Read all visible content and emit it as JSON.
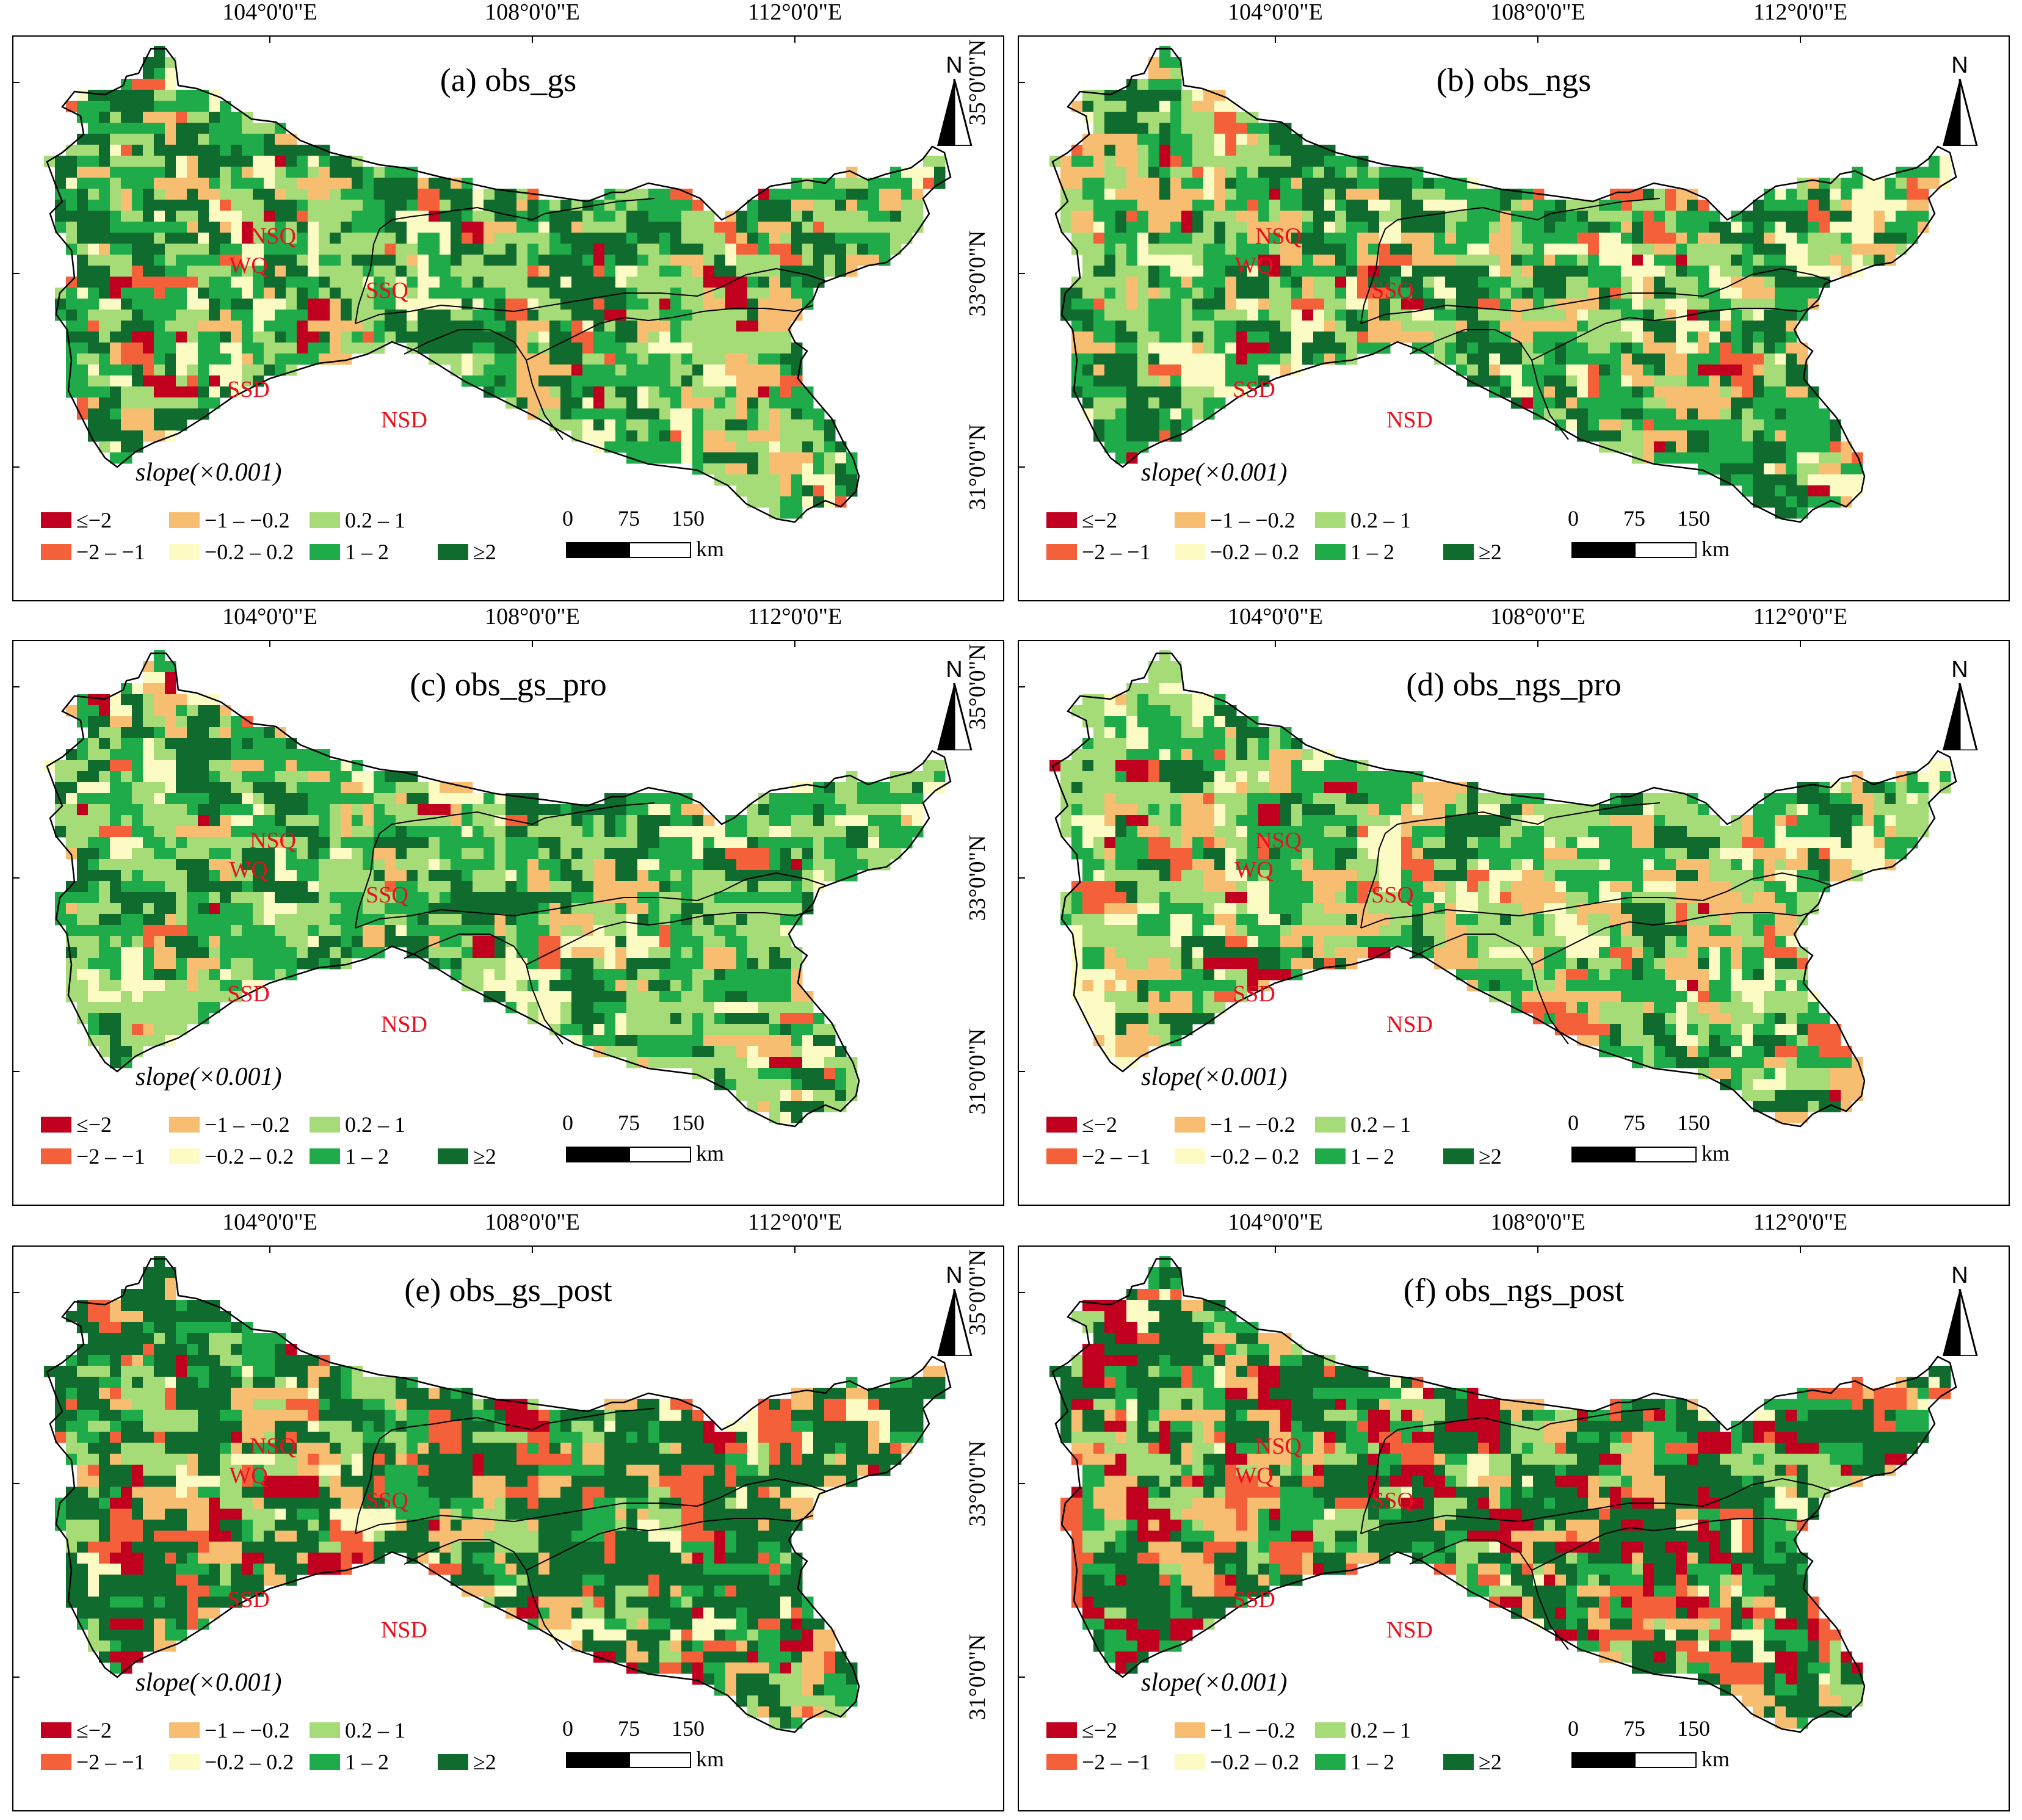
{
  "figure": {
    "lon_labels": [
      "104°0'0\"E",
      "108°0'0\"E",
      "112°0'0\"E"
    ],
    "lat_labels": [
      "35°0'0\"N",
      "33°0'0\"N",
      "31°0'0\"N"
    ],
    "north_arrow_label": "N",
    "slope_label": "slope(×0.001)",
    "region_labels": [
      "WQ",
      "NSQ",
      "SSQ",
      "SSD",
      "NSD"
    ],
    "legend": [
      {
        "label": "≤−2",
        "color": "#c0001e"
      },
      {
        "label": "−2 – −1",
        "color": "#f4603a"
      },
      {
        "label": "−1 – −0.2",
        "color": "#f7be72"
      },
      {
        "label": "−0.2 – 0.2",
        "color": "#fdfbc4"
      },
      {
        "label": "0.2 – 1",
        "color": "#a6dc78"
      },
      {
        "label": "1 – 2",
        "color": "#1fab4a"
      },
      {
        "label": "≥2",
        "color": "#0f6b2e"
      }
    ],
    "scale_labels": [
      "0",
      "75",
      "150"
    ],
    "scale_unit": "km"
  },
  "panels": [
    {
      "title": "(a) obs_gs",
      "dominant": [
        0.02,
        0.04,
        0.1,
        0.1,
        0.22,
        0.28,
        0.24
      ]
    },
    {
      "title": "(b) obs_ngs",
      "dominant": [
        0.02,
        0.05,
        0.14,
        0.1,
        0.24,
        0.25,
        0.2
      ]
    },
    {
      "title": "(c) obs_gs_pro",
      "dominant": [
        0.01,
        0.02,
        0.08,
        0.1,
        0.3,
        0.3,
        0.19
      ]
    },
    {
      "title": "(d) obs_ngs_pro",
      "dominant": [
        0.02,
        0.06,
        0.18,
        0.12,
        0.26,
        0.24,
        0.12
      ]
    },
    {
      "title": "(e) obs_gs_post",
      "dominant": [
        0.05,
        0.1,
        0.1,
        0.06,
        0.1,
        0.14,
        0.45
      ]
    },
    {
      "title": "(f) obs_ngs_post",
      "dominant": [
        0.14,
        0.1,
        0.12,
        0.06,
        0.1,
        0.14,
        0.34
      ]
    }
  ]
}
